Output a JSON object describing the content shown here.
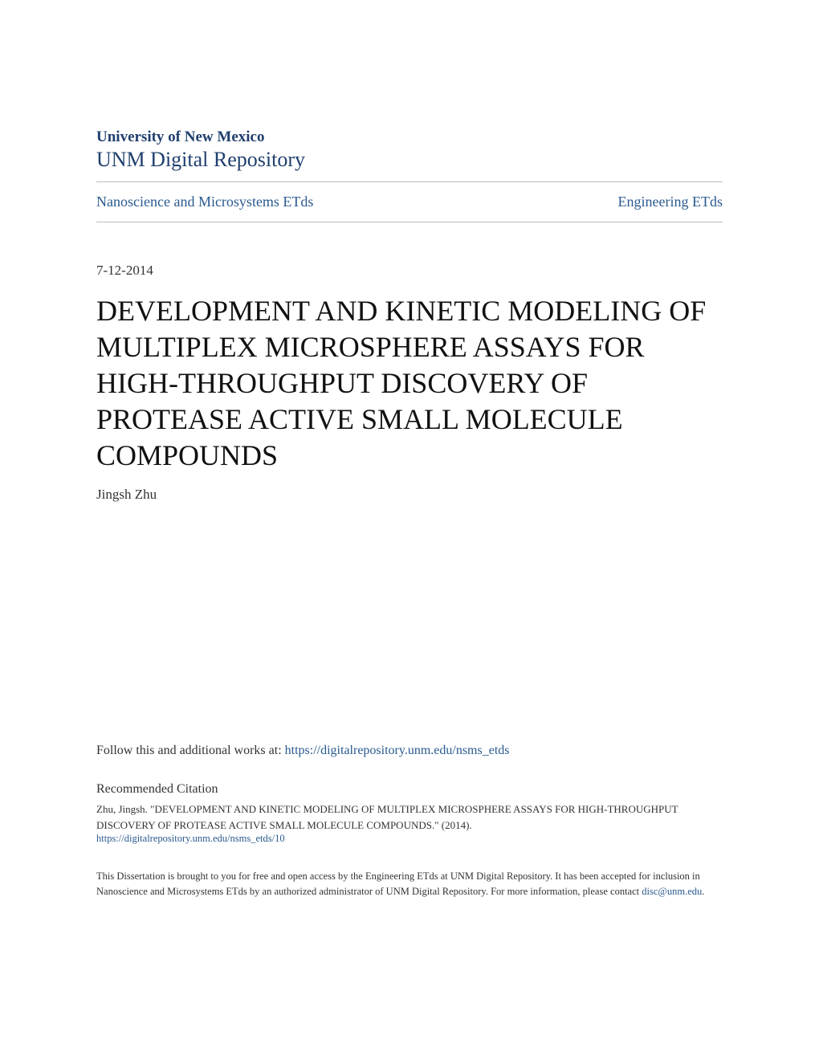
{
  "header": {
    "university": "University of New Mexico",
    "repository": "UNM Digital Repository"
  },
  "nav": {
    "left": "Nanoscience and Microsystems ETds",
    "right": "Engineering ETds"
  },
  "document": {
    "date": "7-12-2014",
    "title": "DEVELOPMENT AND KINETIC MODELING OF MULTIPLEX MICROSPHERE ASSAYS FOR HIGH-THROUGHPUT DISCOVERY OF PROTEASE ACTIVE SMALL MOLECULE COMPOUNDS",
    "author": "Jingsh Zhu"
  },
  "follow": {
    "prefix": "Follow this and additional works at: ",
    "url": "https://digitalrepository.unm.edu/nsms_etds"
  },
  "citation": {
    "heading": "Recommended Citation",
    "text": "Zhu, Jingsh. \"DEVELOPMENT AND KINETIC MODELING OF MULTIPLEX MICROSPHERE ASSAYS FOR HIGH-THROUGHPUT DISCOVERY OF PROTEASE ACTIVE SMALL MOLECULE COMPOUNDS.\" (2014).",
    "url": "https://digitalrepository.unm.edu/nsms_etds/10"
  },
  "footer": {
    "text": "This Dissertation is brought to you for free and open access by the Engineering ETds at UNM Digital Repository. It has been accepted for inclusion in Nanoscience and Microsystems ETds by an authorized administrator of UNM Digital Repository. For more information, please contact ",
    "email": "disc@unm.edu",
    "suffix": "."
  },
  "colors": {
    "primary": "#1f3f6e",
    "link": "#2a5a8f",
    "text": "#333333",
    "background": "#ffffff",
    "divider": "#bbbbbb"
  }
}
